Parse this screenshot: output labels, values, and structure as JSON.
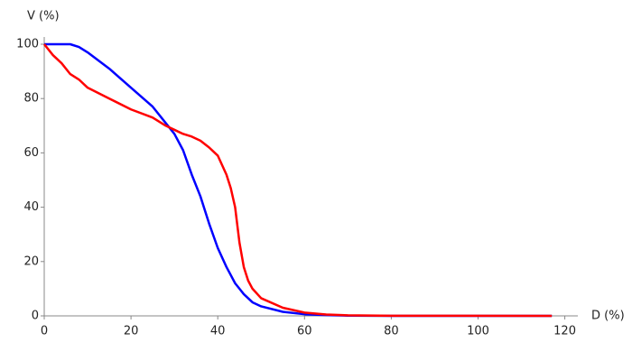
{
  "chart_data": {
    "type": "line",
    "x_label": "D (%)",
    "y_label": "V (%)",
    "x": [
      0,
      2,
      4,
      6,
      8,
      10,
      15,
      20,
      25,
      28,
      30,
      32,
      34,
      36,
      38,
      40,
      42,
      43,
      44,
      45,
      46,
      47,
      48,
      50,
      55,
      60,
      65,
      70,
      80,
      117
    ],
    "series": [
      {
        "color": "#0000ff",
        "values": [
          100,
          100,
          100,
          100,
          99,
          97,
          91,
          84,
          77,
          71,
          67,
          61,
          52,
          44,
          34,
          25,
          18,
          15,
          12,
          10,
          8,
          6.5,
          5,
          3.5,
          1.5,
          0.6,
          0.3,
          0.1,
          0,
          0
        ]
      },
      {
        "color": "#ff0000",
        "values": [
          100,
          96,
          93,
          89,
          87,
          84,
          80,
          76,
          73,
          70,
          68.5,
          67,
          66,
          64.5,
          62,
          59,
          52,
          47,
          40,
          27,
          18,
          13,
          10,
          6.5,
          3,
          1.2,
          0.5,
          0.2,
          0.05,
          0
        ]
      }
    ],
    "xlim": [
      0,
      123
    ],
    "ylim": [
      0,
      100
    ],
    "xticks": [
      0,
      20,
      40,
      60,
      80,
      100,
      120
    ],
    "yticks": [
      0,
      20,
      40,
      60,
      80,
      100
    ],
    "grid": false
  }
}
